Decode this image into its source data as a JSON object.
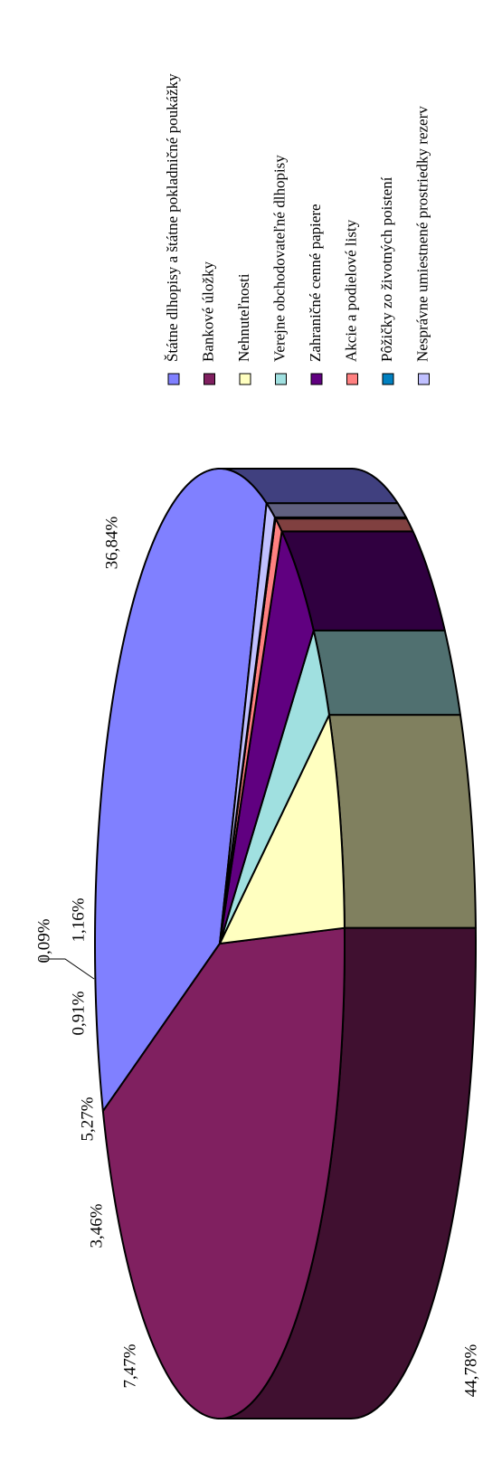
{
  "chart_data": {
    "type": "pie",
    "title": "",
    "three_d": true,
    "legend_position": "right",
    "unit": "%",
    "slices": [
      {
        "name": "Štátne dlhopisy a štátne pokladničné poukážky",
        "value": 36.84,
        "label": "36,84%",
        "color": "#8080ff",
        "side_color": "#40407f"
      },
      {
        "name": "Bankové úložky",
        "value": 44.78,
        "label": "44,78%",
        "color": "#802060",
        "side_color": "#401030"
      },
      {
        "name": "Nehnuteľnosti",
        "value": 7.47,
        "label": "7,47%",
        "color": "#ffffc0",
        "side_color": "#80805f"
      },
      {
        "name": "Verejne obchodovateľné dlhopisy",
        "value": 3.46,
        "label": "3,46%",
        "color": "#a0e0e0",
        "side_color": "#507070"
      },
      {
        "name": "Zahraničné cenné papiere",
        "value": 5.27,
        "label": "5,27%",
        "color": "#600080",
        "side_color": "#300040"
      },
      {
        "name": "Akcie a podielové listy",
        "value": 0.91,
        "label": "0,91%",
        "color": "#ff8080",
        "side_color": "#804040"
      },
      {
        "name": "Pôžičky zo životných poistení",
        "value": 0.09,
        "label": "0,09%",
        "color": "#0080c0",
        "side_color": "#004060"
      },
      {
        "name": "Nesprávne umiestnené prostriedky rezerv",
        "value": 1.16,
        "label": "1,16%",
        "color": "#c0c0ff",
        "side_color": "#60607f"
      }
    ]
  }
}
